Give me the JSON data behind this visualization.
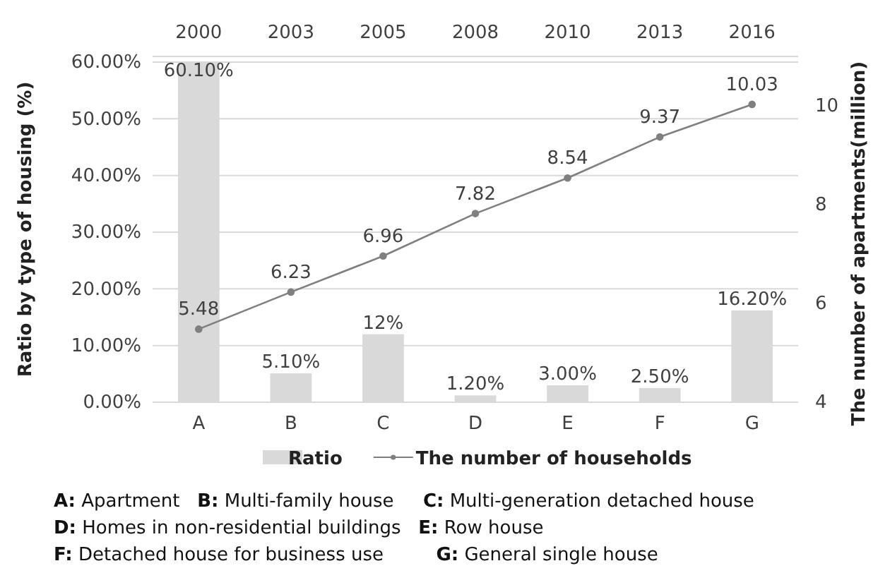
{
  "chart_data": {
    "type": "bar",
    "categories": [
      "A",
      "B",
      "C",
      "D",
      "E",
      "F",
      "G"
    ],
    "ylabel": "Ratio by type of housing (%)",
    "y2label": "The number of apartments(million)",
    "ylim": [
      0,
      61
    ],
    "yticks": [
      {
        "value": 0,
        "label": "0.00%"
      },
      {
        "value": 10,
        "label": "10.00%"
      },
      {
        "value": 20,
        "label": "20.00%"
      },
      {
        "value": 30,
        "label": "30.00%"
      },
      {
        "value": 40,
        "label": "40.00%"
      },
      {
        "value": 50,
        "label": "50.00%"
      },
      {
        "value": 60,
        "label": "60.00%"
      }
    ],
    "y2lim": [
      4,
      11
    ],
    "y2ticks": [
      4,
      6,
      8,
      10
    ],
    "grid": "y",
    "legend": "bottom",
    "marker": "circle",
    "line_style": "solid",
    "series": [
      {
        "name": "Ratio",
        "color": "#d9d9d9",
        "values": [
          60.1,
          5.1,
          12,
          1.2,
          3,
          2.5,
          16.2
        ],
        "value_labels": [
          "60.10%",
          "5.10%",
          "12%",
          "1.20%",
          "3.00%",
          "2.50%",
          "16.20%"
        ]
      },
      {
        "name": "The number of households",
        "type": "line",
        "axis": "y2",
        "color": "#7f7f7f",
        "values": [
          5.48,
          6.23,
          6.96,
          7.82,
          8.54,
          9.37,
          10.03
        ],
        "value_labels": [
          "5.48",
          "6.23",
          "6.96",
          "7.82",
          "8.54",
          "9.37",
          "10.03"
        ]
      }
    ],
    "annotations": [
      "2000",
      "2003",
      "2005",
      "2008",
      "2010",
      "2013",
      "2016",
      "A: Apartment   B: Multi-family house     C: Multi-generation detached house",
      "D: Homes in non-residential buildings   E: Row house",
      "F: Detached house for business use         G: General single house"
    ]
  }
}
